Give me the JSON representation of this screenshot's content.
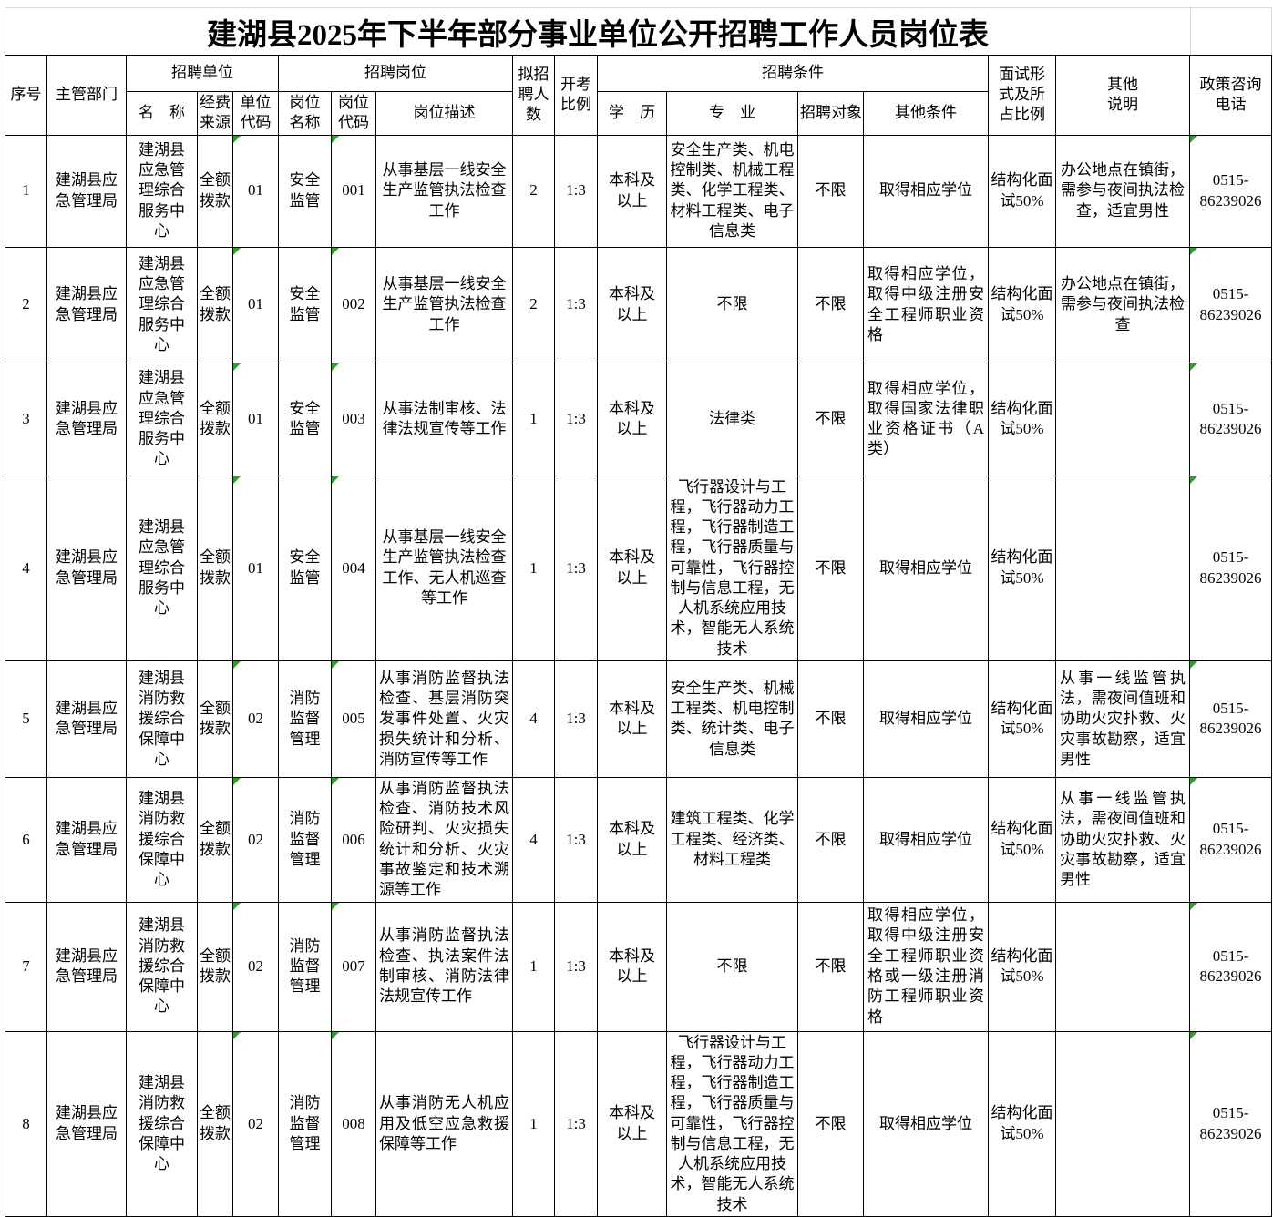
{
  "title": "建湖县2025年下半年部分事业单位公开招聘工作人员岗位表",
  "header": {
    "seq": "序号",
    "dept": "主管部门",
    "unit_group": "招聘单位",
    "unit_name": "名　称",
    "funding": "经费\n来源",
    "unit_code": "单位\n代码",
    "post_group": "招聘岗位",
    "post_name": "岗位\n名称",
    "post_code": "岗位\n代码",
    "post_desc": "岗位描述",
    "planned": "拟招\n聘人\n数",
    "ratio": "开考\n比例",
    "cond_group": "招聘条件",
    "education": "学　历",
    "major": "专　业",
    "target": "招聘对象",
    "other_cond": "其他条件",
    "interview": "面试形\n式及所\n占比例",
    "other_note": "其他\n说明",
    "phone": "政策咨询\n电话"
  },
  "markers": {
    "description": "green error-indicator triangles at top-left of cells",
    "color": "#2e9e2e",
    "columns": [
      4,
      6,
      16
    ]
  },
  "rows": [
    {
      "cells": [
        "1",
        "建湖县应急管理局",
        "建湖县应急管理综合服务中心",
        "全额拨款",
        "01",
        "安全监管",
        "001",
        "从事基层一线安全生产监管执法检查工作",
        "2",
        "1:3",
        "本科及以上",
        "安全生产类、机电控制类、机械工程类、化学工程类、材料工程类、电子信息类",
        "不限",
        "取得相应学位",
        "结构化面试50%",
        "办公地点在镇街，需参与夜间执法检查，适宜男性",
        "0515-86239026"
      ],
      "justify_cols": []
    },
    {
      "cells": [
        "2",
        "建湖县应急管理局",
        "建湖县应急管理综合服务中心",
        "全额拨款",
        "01",
        "安全监管",
        "002",
        "从事基层一线安全生产监管执法检查工作",
        "2",
        "1:3",
        "本科及以上",
        "不限",
        "不限",
        "取得相应学位，取得中级注册安全工程师职业资格",
        "结构化面试50%",
        "办公地点在镇街，需参与夜间执法检查",
        "0515-86239026"
      ],
      "justify_cols": [
        13
      ]
    },
    {
      "cells": [
        "3",
        "建湖县应急管理局",
        "建湖县应急管理综合服务中心",
        "全额拨款",
        "01",
        "安全监管",
        "003",
        "从事法制审核、法律法规宣传等工作",
        "1",
        "1:3",
        "本科及以上",
        "法律类",
        "不限",
        "取得相应学位，取得国家法律职业资格证书（A类）",
        "结构化面试50%",
        "",
        "0515-86239026"
      ],
      "justify_cols": [
        13
      ]
    },
    {
      "cells": [
        "4",
        "建湖县应急管理局",
        "建湖县应急管理综合服务中心",
        "全额拨款",
        "01",
        "安全监管",
        "004",
        "从事基层一线安全生产监管执法检查工作、无人机巡查等工作",
        "1",
        "1:3",
        "本科及以上",
        "飞行器设计与工程，飞行器动力工程，飞行器制造工程，飞行器质量与可靠性，飞行器控制与信息工程，无人机系统应用技术，智能无人系统技术",
        "不限",
        "取得相应学位",
        "结构化面试50%",
        "",
        "0515-86239026"
      ],
      "justify_cols": []
    },
    {
      "cells": [
        "5",
        "建湖县应急管理局",
        "建湖县消防救援综合保障中心",
        "全额拨款",
        "02",
        "消防监督管理",
        "005",
        "从事消防监督执法检查、基层消防突发事件处置、火灾损失统计和分析、消防宣传等工作",
        "4",
        "1:3",
        "本科及以上",
        "安全生产类、机械工程类、机电控制类、统计类、电子信息类",
        "不限",
        "取得相应学位",
        "结构化面试50%",
        "从事一线监管执法，需夜间值班和协助火灾扑救、火灾事故勘察，适宜男性",
        "0515-86239026"
      ],
      "justify_cols": [
        7,
        15
      ]
    },
    {
      "cells": [
        "6",
        "建湖县应急管理局",
        "建湖县消防救援综合保障中心",
        "全额拨款",
        "02",
        "消防监督管理",
        "006",
        "从事消防监督执法检查、消防技术风险研判、火灾损失统计和分析、火灾事故鉴定和技术溯源等工作",
        "4",
        "1:3",
        "本科及以上",
        "建筑工程类、化学工程类、经济类、材料工程类",
        "不限",
        "取得相应学位",
        "结构化面试50%",
        "从事一线监管执法，需夜间值班和协助火灾扑救、火灾事故勘察，适宜男性",
        "0515-86239026"
      ],
      "justify_cols": [
        7,
        15
      ]
    },
    {
      "cells": [
        "7",
        "建湖县应急管理局",
        "建湖县消防救援综合保障中心",
        "全额拨款",
        "02",
        "消防监督管理",
        "007",
        "从事消防监督执法检查、执法案件法制审核、消防法律法规宣传工作",
        "1",
        "1:3",
        "本科及以上",
        "不限",
        "不限",
        "取得相应学位，取得中级注册安全工程师职业资格或一级注册消防工程师职业资格",
        "结构化面试50%",
        "",
        "0515-86239026"
      ],
      "justify_cols": [
        7,
        13
      ]
    },
    {
      "cells": [
        "8",
        "建湖县应急管理局",
        "建湖县消防救援综合保障中心",
        "全额拨款",
        "02",
        "消防监督管理",
        "008",
        "从事消防无人机应用及低空应急救援保障等工作",
        "1",
        "1:3",
        "本科及以上",
        "飞行器设计与工程，飞行器动力工程，飞行器制造工程，飞行器质量与可靠性，飞行器控制与信息工程，无人机系统应用技术，智能无人系统技术",
        "不限",
        "取得相应学位",
        "结构化面试50%",
        "",
        "0515-86239026"
      ],
      "justify_cols": [
        7
      ]
    }
  ]
}
